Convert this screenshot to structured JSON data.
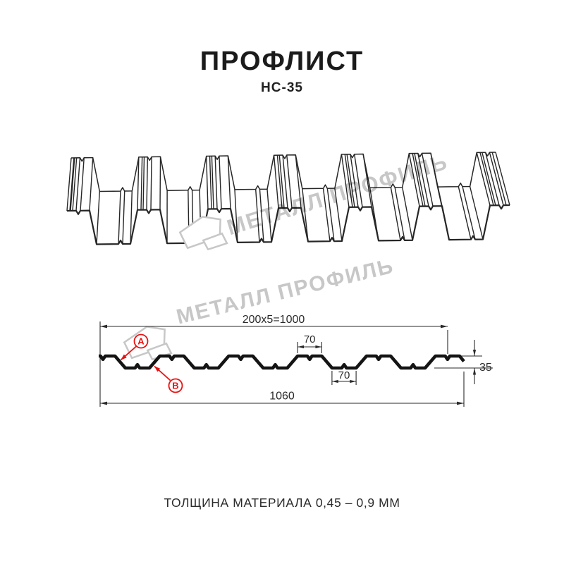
{
  "header": {
    "title": "ПРОФЛИСТ",
    "subtitle": "НС-35"
  },
  "watermark": {
    "text": "МЕТАЛЛ ПРОФИЛЬ"
  },
  "drawing": {
    "dimensions": {
      "working_width": "200x5=1000",
      "crest_width": "70",
      "valley_width": "70",
      "height": "35",
      "total_width": "1060"
    },
    "callouts": {
      "a": "А",
      "b": "В"
    }
  },
  "footer": {
    "note": "ТОЛЩИНА МАТЕРИАЛА 0,45 – 0,9 ММ"
  },
  "colors": {
    "accent_red": "#ea1010",
    "line_dark": "#1a1a1a",
    "watermark_gray": "#c7c7c7"
  }
}
